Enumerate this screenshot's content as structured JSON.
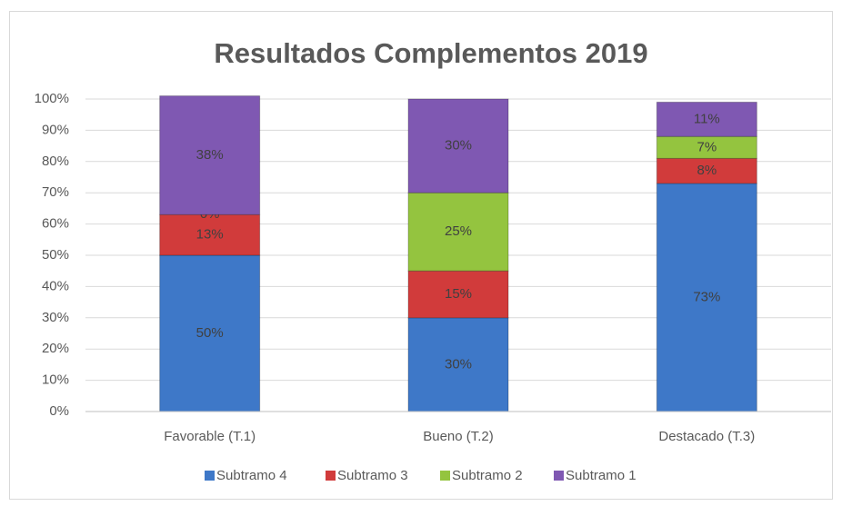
{
  "chart_data": {
    "type": "bar",
    "stacked": true,
    "title": "Resultados Complementos 2019",
    "categories": [
      "Favorable (T.1)",
      "Bueno (T.2)",
      "Destacado (T.3)"
    ],
    "series": [
      {
        "name": "Subtramo 4",
        "color": "#3e78c8",
        "values": [
          50,
          30,
          73
        ],
        "value_labels": [
          "50%",
          "30%",
          "73%"
        ]
      },
      {
        "name": "Subtramo 3",
        "color": "#d13b3b",
        "values": [
          13,
          15,
          8
        ],
        "value_labels": [
          "13%",
          "15%",
          "8%"
        ]
      },
      {
        "name": "Subtramo 2",
        "color": "#94c43f",
        "values": [
          0,
          25,
          7
        ],
        "value_labels": [
          "0%",
          "25%",
          "7%"
        ]
      },
      {
        "name": "Subtramo 1",
        "color": "#7f58b2",
        "values": [
          38,
          30,
          11
        ],
        "value_labels": [
          "38%",
          "30%",
          "11%"
        ]
      }
    ],
    "ylim": [
      0,
      100
    ],
    "yticks": [
      {
        "value": 0,
        "label": "0%"
      },
      {
        "value": 10,
        "label": "10%"
      },
      {
        "value": 20,
        "label": "20%"
      },
      {
        "value": 30,
        "label": "30%"
      },
      {
        "value": 40,
        "label": "40%"
      },
      {
        "value": 50,
        "label": "50%"
      },
      {
        "value": 60,
        "label": "60%"
      },
      {
        "value": 70,
        "label": "70%"
      },
      {
        "value": 80,
        "label": "80%"
      },
      {
        "value": 90,
        "label": "90%"
      },
      {
        "value": 100,
        "label": "100%"
      }
    ],
    "grid": true,
    "legend": "bottom"
  }
}
